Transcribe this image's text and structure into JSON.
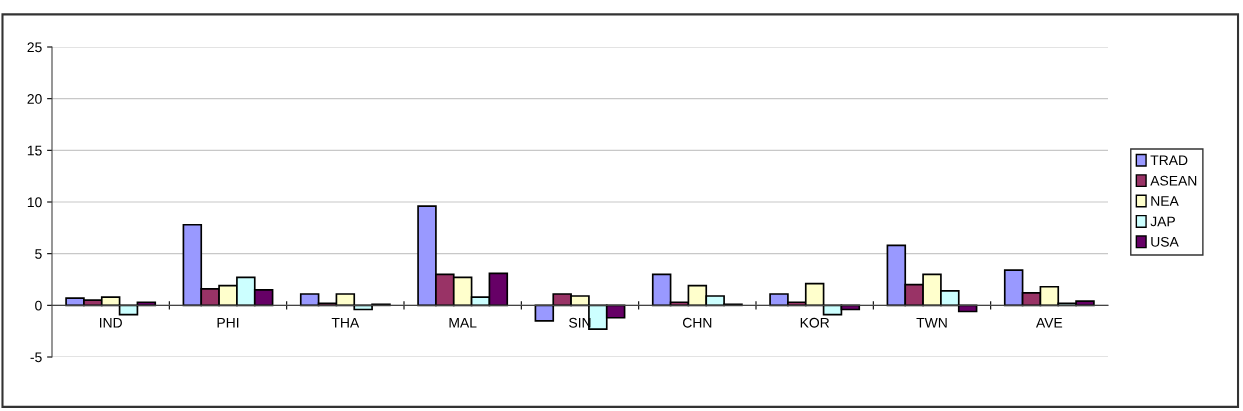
{
  "chart_data": {
    "type": "bar",
    "categories": [
      "IND",
      "PHI",
      "THA",
      "MAL",
      "SIN",
      "CHN",
      "KOR",
      "TWN",
      "AVE"
    ],
    "series": [
      {
        "name": "TRAD",
        "color": "#9999ff",
        "values": [
          0.7,
          7.8,
          1.1,
          9.6,
          -1.5,
          3.0,
          1.1,
          5.8,
          3.4
        ]
      },
      {
        "name": "ASEAN",
        "color": "#993366",
        "values": [
          0.5,
          1.6,
          0.2,
          3.0,
          1.1,
          0.3,
          0.3,
          2.0,
          1.2
        ]
      },
      {
        "name": "NEA",
        "color": "#ffffcc",
        "values": [
          0.8,
          1.9,
          1.1,
          2.7,
          0.9,
          1.9,
          2.1,
          3.0,
          1.8
        ]
      },
      {
        "name": "JAP",
        "color": "#ccffff",
        "values": [
          -0.9,
          2.7,
          -0.4,
          0.8,
          -2.3,
          0.9,
          -0.9,
          1.4,
          0.2
        ]
      },
      {
        "name": "USA",
        "color": "#660066",
        "values": [
          0.3,
          1.5,
          0.1,
          3.1,
          -1.2,
          0.1,
          -0.4,
          -0.6,
          0.4
        ]
      }
    ],
    "ylim": [
      -5,
      25
    ],
    "yticks": [
      -5,
      0,
      5,
      10,
      15,
      20,
      25
    ],
    "grid": "y",
    "legend": "right"
  }
}
